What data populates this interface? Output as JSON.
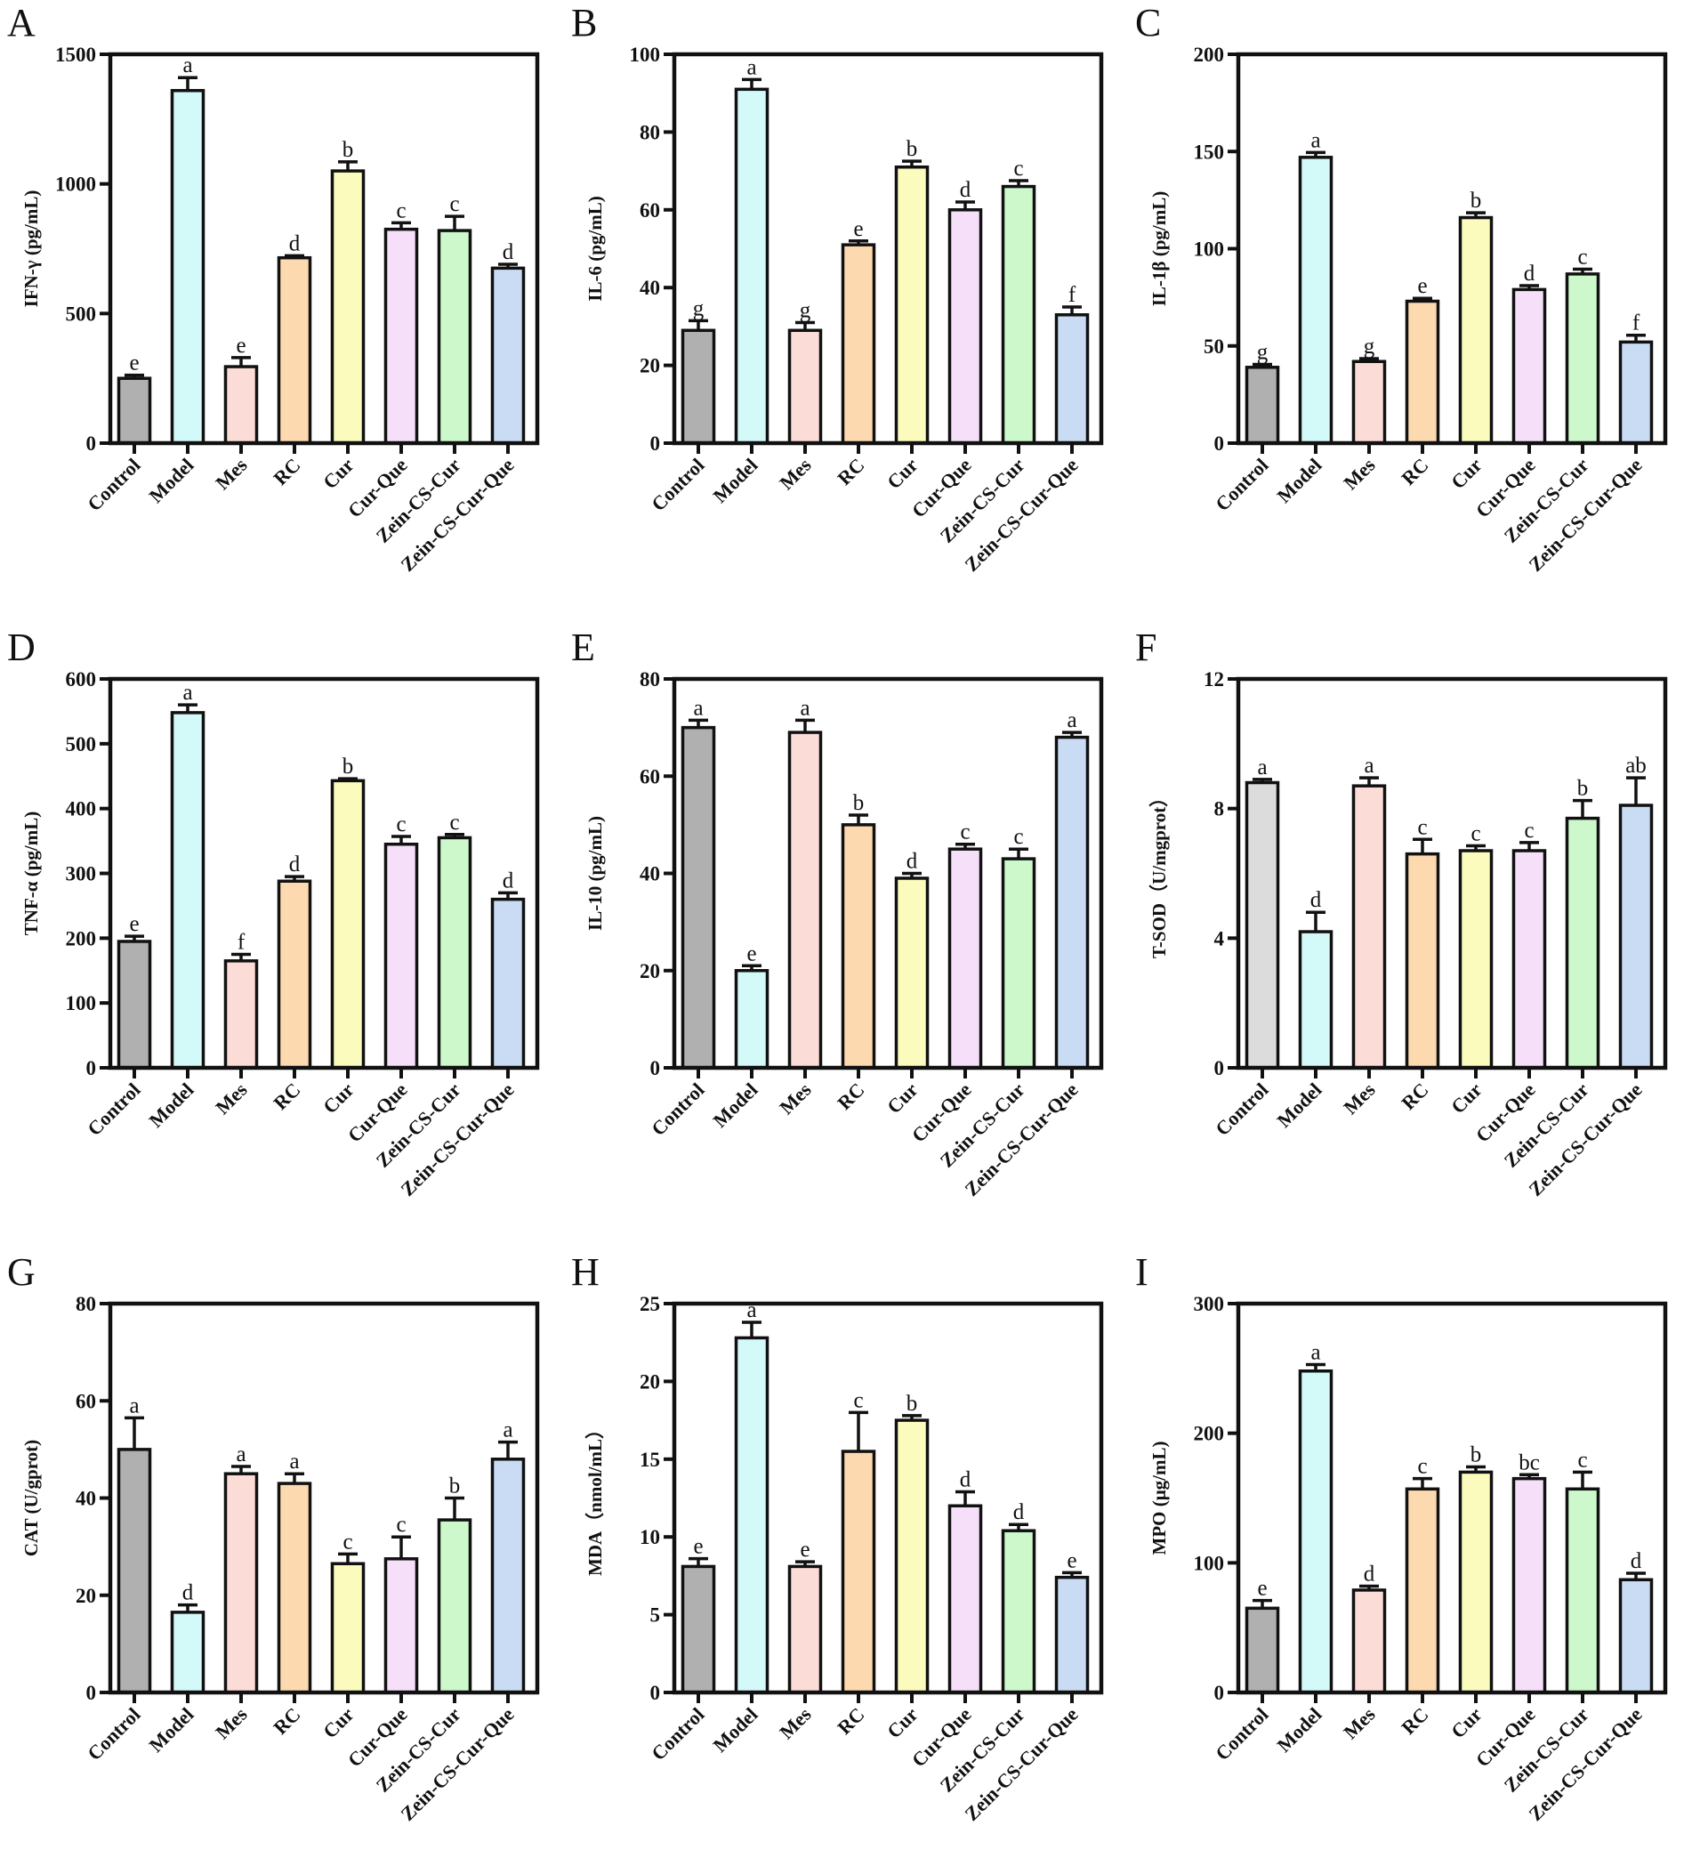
{
  "chart_data": [
    {
      "panel": "A",
      "type": "bar",
      "ylabel": "IFN-γ (pg/mL)",
      "ylim": [
        0,
        1500
      ],
      "yticks": [
        0,
        500,
        1000,
        1500
      ],
      "categories": [
        "Control",
        "Model",
        "Mes",
        "RC",
        "Cur",
        "Cur-Que",
        "Zein-CS-Cur",
        "Zein-CS-Cur-Que"
      ],
      "values": [
        250,
        1360,
        295,
        715,
        1050,
        825,
        820,
        675
      ],
      "errors": [
        12,
        50,
        35,
        8,
        35,
        25,
        55,
        15
      ],
      "letters": [
        "e",
        "a",
        "e",
        "d",
        "b",
        "c",
        "c",
        "d"
      ]
    },
    {
      "panel": "B",
      "type": "bar",
      "ylabel": "IL-6 (pg/mL)",
      "ylim": [
        0,
        100
      ],
      "yticks": [
        0,
        20,
        40,
        60,
        80,
        100
      ],
      "categories": [
        "Control",
        "Model",
        "Mes",
        "RC",
        "Cur",
        "Cur-Que",
        "Zein-CS-Cur",
        "Zein-CS-Cur-Que"
      ],
      "values": [
        29,
        91,
        29,
        51,
        71,
        60,
        66,
        33
      ],
      "errors": [
        2.5,
        2.5,
        2,
        1,
        1.5,
        2,
        1.5,
        2
      ],
      "letters": [
        "g",
        "a",
        "g",
        "e",
        "b",
        "d",
        "c",
        "f"
      ]
    },
    {
      "panel": "C",
      "type": "bar",
      "ylabel": "IL-1β (pg/mL)",
      "ylim": [
        0,
        200
      ],
      "yticks": [
        0,
        50,
        100,
        150,
        200
      ],
      "categories": [
        "Control",
        "Model",
        "Mes",
        "RC",
        "Cur",
        "Cur-Que",
        "Zein-CS-Cur",
        "Zein-CS-Cur-Que"
      ],
      "values": [
        39,
        147,
        42,
        73,
        116,
        79,
        87,
        52
      ],
      "errors": [
        1.5,
        2.5,
        1.5,
        1.5,
        2.5,
        2,
        2.5,
        3.5
      ],
      "letters": [
        "g",
        "a",
        "g",
        "e",
        "b",
        "d",
        "c",
        "f"
      ]
    },
    {
      "panel": "D",
      "type": "bar",
      "ylabel": "TNF-α (pg/mL)",
      "ylim": [
        0,
        600
      ],
      "yticks": [
        0,
        100,
        200,
        300,
        400,
        500,
        600
      ],
      "categories": [
        "Control",
        "Model",
        "Mes",
        "RC",
        "Cur",
        "Cur-Que",
        "Zein-CS-Cur",
        "Zein-CS-Cur-Que"
      ],
      "values": [
        195,
        548,
        165,
        288,
        443,
        345,
        355,
        260
      ],
      "errors": [
        8,
        12,
        10,
        7,
        3,
        12,
        5,
        10
      ],
      "letters": [
        "e",
        "a",
        "f",
        "d",
        "b",
        "c",
        "c",
        "d"
      ]
    },
    {
      "panel": "E",
      "type": "bar",
      "ylabel": "IL-10 (pg/mL)",
      "ylim": [
        0,
        80
      ],
      "yticks": [
        0,
        20,
        40,
        60,
        80
      ],
      "categories": [
        "Control",
        "Model",
        "Mes",
        "RC",
        "Cur",
        "Cur-Que",
        "Zein-CS-Cur",
        "Zein-CS-Cur-Que"
      ],
      "values": [
        70,
        20,
        69,
        50,
        39,
        45,
        43,
        68
      ],
      "errors": [
        1.5,
        1,
        2.5,
        2,
        1,
        1,
        2,
        1
      ],
      "letters": [
        "a",
        "e",
        "a",
        "b",
        "d",
        "c",
        "c",
        "a"
      ]
    },
    {
      "panel": "F",
      "type": "bar",
      "ylabel": "T-SOD（U/mgprot）",
      "ylim": [
        0,
        12
      ],
      "yticks": [
        0,
        4,
        8,
        12
      ],
      "categories": [
        "Control",
        "Model",
        "Mes",
        "RC",
        "Cur",
        "Cur-Que",
        "Zein-CS-Cur",
        "Zein-CS-Cur-Que"
      ],
      "values": [
        8.8,
        4.2,
        8.7,
        6.6,
        6.7,
        6.7,
        7.7,
        8.1
      ],
      "errors": [
        0.1,
        0.6,
        0.25,
        0.45,
        0.15,
        0.25,
        0.55,
        0.85
      ],
      "letters": [
        "a",
        "d",
        "a",
        "c",
        "c",
        "c",
        "b",
        "ab"
      ],
      "first_color": "#dcdcdc"
    },
    {
      "panel": "G",
      "type": "bar",
      "ylabel": "CAT (U/gprot)",
      "ylim": [
        0,
        80
      ],
      "yticks": [
        0,
        20,
        40,
        60,
        80
      ],
      "categories": [
        "Control",
        "Model",
        "Mes",
        "RC",
        "Cur",
        "Cur-Que",
        "Zein-CS-Cur",
        "Zein-CS-Cur-Que"
      ],
      "values": [
        50,
        16.5,
        45,
        43,
        26.5,
        27.5,
        35.5,
        48
      ],
      "errors": [
        6.5,
        1.5,
        1.5,
        2,
        2,
        4.5,
        4.5,
        3.5
      ],
      "letters": [
        "a",
        "d",
        "a",
        "a",
        "c",
        "c",
        "b",
        "a"
      ]
    },
    {
      "panel": "H",
      "type": "bar",
      "ylabel": "MDA（nmol/mL）",
      "ylim": [
        0,
        25
      ],
      "yticks": [
        0,
        5,
        10,
        15,
        20,
        25
      ],
      "categories": [
        "Control",
        "Model",
        "Mes",
        "RC",
        "Cur",
        "Cur-Que",
        "Zein-CS-Cur",
        "Zein-CS-Cur-Que"
      ],
      "values": [
        8.1,
        22.8,
        8.1,
        15.5,
        17.5,
        12,
        10.4,
        7.4
      ],
      "errors": [
        0.5,
        1,
        0.3,
        2.5,
        0.3,
        0.9,
        0.4,
        0.3
      ],
      "letters": [
        "e",
        "a",
        "e",
        "c",
        "b",
        "d",
        "d",
        "e"
      ]
    },
    {
      "panel": "I",
      "type": "bar",
      "ylabel": "MPO (μg/mL)",
      "ylim": [
        0,
        300
      ],
      "yticks": [
        0,
        100,
        200,
        300
      ],
      "categories": [
        "Control",
        "Model",
        "Mes",
        "RC",
        "Cur",
        "Cur-Que",
        "Zein-CS-Cur",
        "Zein-CS-Cur-Que"
      ],
      "values": [
        65,
        248,
        79,
        157,
        170,
        165,
        157,
        87
      ],
      "errors": [
        6,
        5,
        3,
        8,
        4,
        3,
        13,
        5
      ],
      "letters": [
        "e",
        "a",
        "d",
        "c",
        "b",
        "bc",
        "c",
        "d"
      ]
    }
  ],
  "colors": [
    "#b0b0b0",
    "#d4f9f9",
    "#fcdcd6",
    "#fdd9b0",
    "#fbfbbd",
    "#f6e0f9",
    "#cdf8cc",
    "#c9dcf4"
  ]
}
